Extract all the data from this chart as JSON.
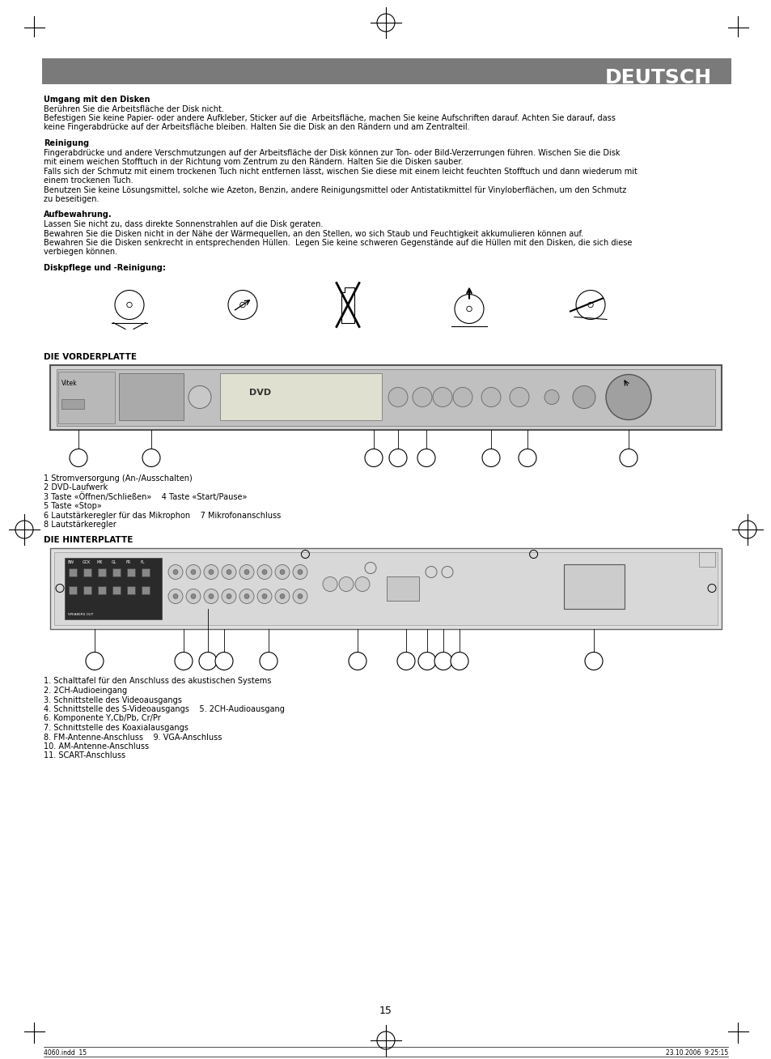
{
  "page_bg": "#ffffff",
  "header_bg": "#7a7a7a",
  "header_text": "DEUTSCH",
  "header_text_color": "#ffffff",
  "body_fontsize": 7.0,
  "bold_fontsize": 7.0,
  "page_number": "15",
  "footer_left": "4060.indd  15",
  "footer_right": "23.10.2006  9:25:15",
  "sections": [
    {
      "title": "Umgang mit den Disken",
      "lines": [
        "Berühren Sie die Arbeitsfläche der Disk nicht.",
        "Befestigen Sie keine Papier- oder andere Aufkleber, Sticker auf die  Arbeitsfläche, machen Sie keine Aufschriften darauf. Achten Sie darauf, dass",
        "keine Fingerabdrücke auf der Arbeitsfläche bleiben. Halten Sie die Disk an den Rändern und am Zentralteil."
      ]
    },
    {
      "title": "Reinigung",
      "lines": [
        "Fingerabdrücke und andere Verschmutzungen auf der Arbeitsfläche der Disk können zur Ton- oder Bild-Verzerrungen führen. Wischen Sie die Disk",
        "mit einem weichen Stofftuch in der Richtung vom Zentrum zu den Rändern. Halten Sie die Disken sauber.",
        "Falls sich der Schmutz mit einem trockenen Tuch nicht entfernen lässt, wischen Sie diese mit einem leicht feuchten Stofftuch und dann wiederum mit",
        "einem trockenen Tuch.",
        "Benutzen Sie keine Lösungsmittel, solche wie Azeton, Benzin, andere Reinigungsmittel oder Antistatikmittel für Vinyloberflächen, um den Schmutz",
        "zu beseitigen."
      ]
    },
    {
      "title": "Aufbewahrung.",
      "lines": [
        "Lassen Sie nicht zu, dass direkte Sonnenstrahlen auf die Disk geraten.",
        "Bewahren Sie die Disken nicht in der Nähe der Wärmequellen, an den Stellen, wo sich Staub und Feuchtigkeit akkumulieren können auf.",
        "Bewahren Sie die Disken senkrecht in entsprechenden Hüllen.  Legen Sie keine schweren Gegenstände auf die Hüllen mit den Disken, die sich diese",
        "verbiegen können."
      ]
    }
  ],
  "disk_section_title": "Diskpflege und -Reinigung:",
  "vorderplatte_title": "DIE VORDERPLATTE",
  "vorderplatte_labels": [
    "1 Stromversorgung (An-/Ausschalten)",
    "2 DVD-Laufwerk",
    "3 Taste «Öffnen/Schließen»    4 Taste «Start/Pause»",
    "5 Taste «Stop»",
    "6 Lautstärkeregler für das Mikrophon    7 Mikrofonanschluss",
    "8 Lautstärkeregler"
  ],
  "hinterplatte_title": "DIE HINTERPLATTE",
  "hinterplatte_labels": [
    "1. Schalttafel für den Anschluss des akustischen Systems",
    "2. 2CH-Audioeingang",
    "3. Schnittstelle des Videoausgangs",
    "4. Schnittstelle des S-Videoausgangs    5. 2CH-Audioausgang",
    "6. Komponente Y,Cb/Pb, Cr/Pr",
    "7. Schnittstelle des Koaxialausgangs",
    "8. FM-Antenne-Anschluss    9. VGA-Anschluss",
    "10. AM-Antenne-Anschluss",
    "11. SCART-Anschluss"
  ]
}
